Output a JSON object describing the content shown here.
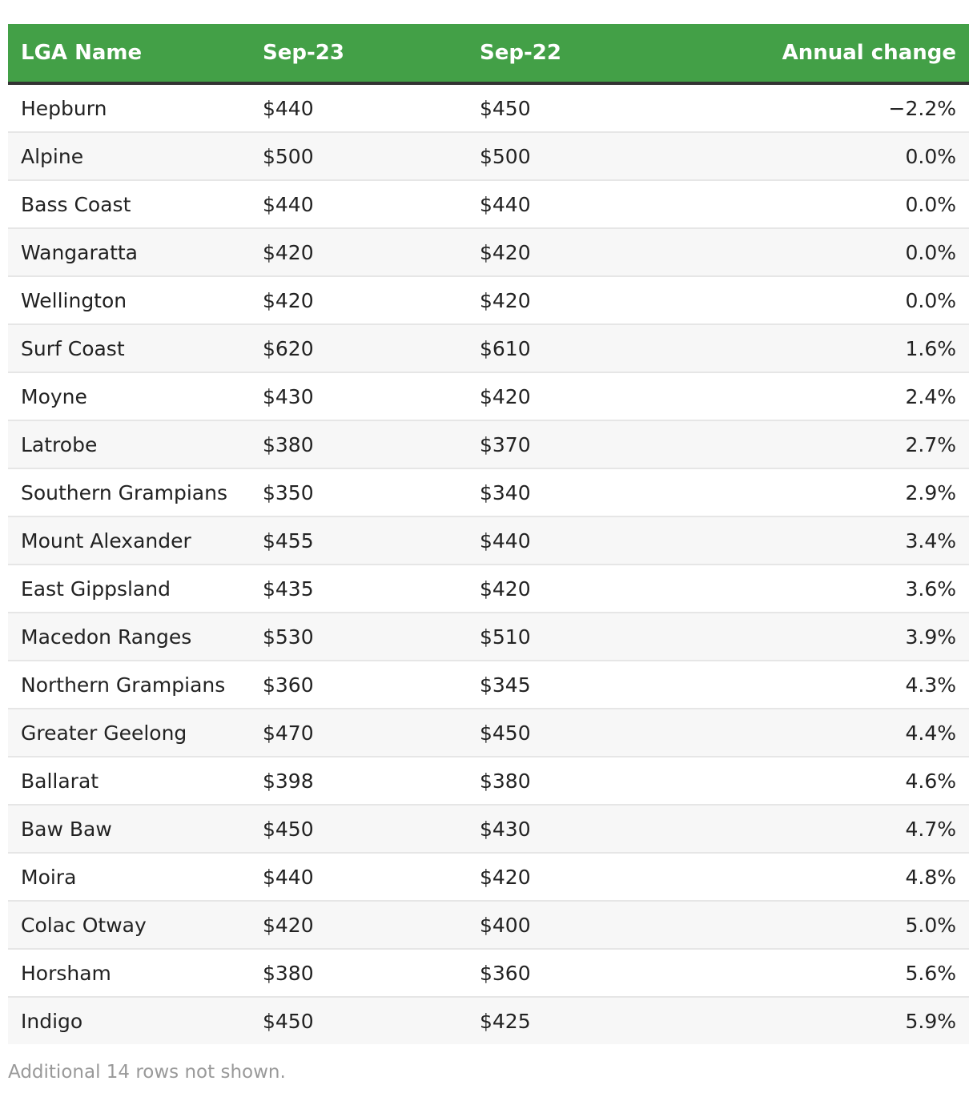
{
  "chart_data": {
    "type": "table",
    "columns": [
      "LGA Name",
      "Sep-23",
      "Sep-22",
      "Annual change"
    ],
    "rows": [
      [
        "Hepburn",
        "$440",
        "$450",
        "−2.2%"
      ],
      [
        "Alpine",
        "$500",
        "$500",
        "0.0%"
      ],
      [
        "Bass Coast",
        "$440",
        "$440",
        "0.0%"
      ],
      [
        "Wangaratta",
        "$420",
        "$420",
        "0.0%"
      ],
      [
        "Wellington",
        "$420",
        "$420",
        "0.0%"
      ],
      [
        "Surf Coast",
        "$620",
        "$610",
        "1.6%"
      ],
      [
        "Moyne",
        "$430",
        "$420",
        "2.4%"
      ],
      [
        "Latrobe",
        "$380",
        "$370",
        "2.7%"
      ],
      [
        "Southern Grampians",
        "$350",
        "$340",
        "2.9%"
      ],
      [
        "Mount Alexander",
        "$455",
        "$440",
        "3.4%"
      ],
      [
        "East Gippsland",
        "$435",
        "$420",
        "3.6%"
      ],
      [
        "Macedon Ranges",
        "$530",
        "$510",
        "3.9%"
      ],
      [
        "Northern Grampians",
        "$360",
        "$345",
        "4.3%"
      ],
      [
        "Greater Geelong",
        "$470",
        "$450",
        "4.4%"
      ],
      [
        "Ballarat",
        "$398",
        "$380",
        "4.6%"
      ],
      [
        "Baw Baw",
        "$450",
        "$430",
        "4.7%"
      ],
      [
        "Moira",
        "$440",
        "$420",
        "4.8%"
      ],
      [
        "Colac Otway",
        "$420",
        "$400",
        "5.0%"
      ],
      [
        "Horsham",
        "$380",
        "$360",
        "5.6%"
      ],
      [
        "Indigo",
        "$450",
        "$425",
        "5.9%"
      ]
    ],
    "footnote": "Additional 14 rows not shown."
  },
  "colors": {
    "header_bg": "#43a047",
    "header_text": "#ffffff",
    "header_rule": "#333333",
    "stripe": "#f7f7f7",
    "footnote": "#999999"
  }
}
